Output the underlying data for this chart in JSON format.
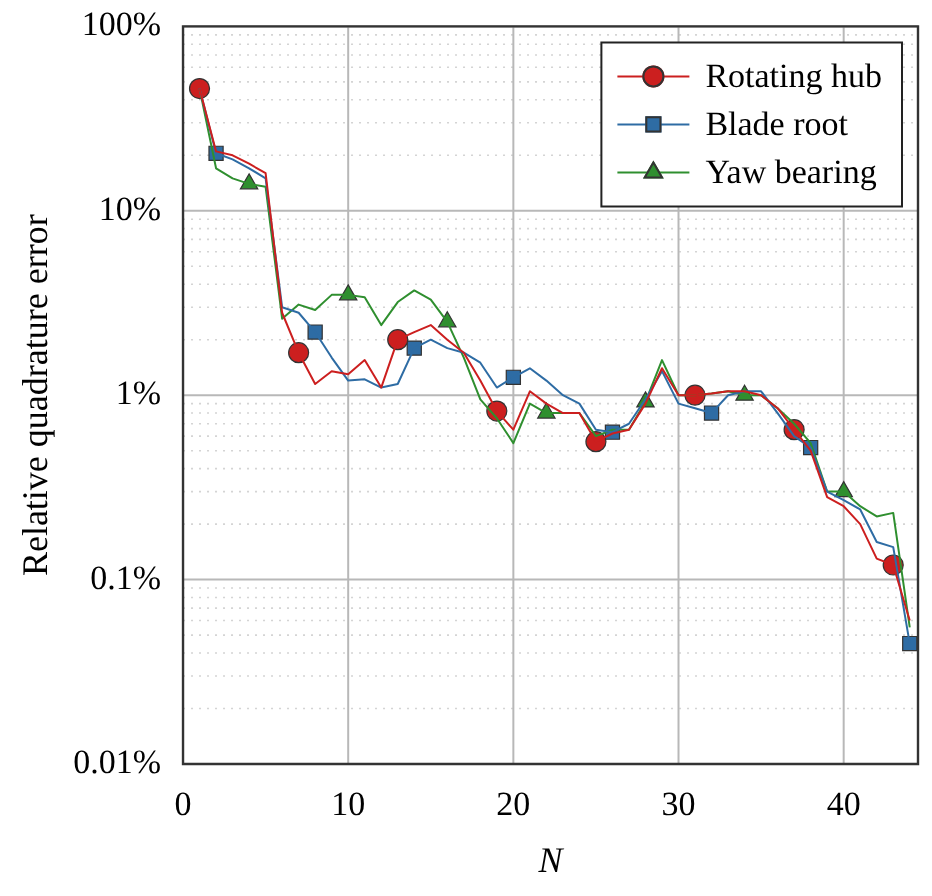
{
  "chart_data": {
    "type": "line",
    "xlabel": "N",
    "ylabel": "Relative quadrature error",
    "log": "y",
    "grid": true,
    "legend": "top right",
    "line_style": "solid",
    "x": [
      1,
      2,
      3,
      4,
      5,
      6,
      7,
      8,
      9,
      10,
      11,
      12,
      13,
      14,
      15,
      16,
      17,
      18,
      19,
      20,
      21,
      22,
      23,
      24,
      25,
      26,
      27,
      28,
      29,
      30,
      31,
      32,
      33,
      34,
      35,
      36,
      37,
      38,
      39,
      40,
      41,
      42,
      43,
      44
    ],
    "xlim": [
      0,
      44.5
    ],
    "xticks": [
      0,
      10,
      20,
      30,
      40
    ],
    "ylim": [
      0.01,
      100
    ],
    "yticks": [
      {
        "value": 0.01,
        "label": "0.01%"
      },
      {
        "value": 0.02,
        "label": null
      },
      {
        "value": 0.03,
        "label": null
      },
      {
        "value": 0.04,
        "label": null
      },
      {
        "value": 0.05,
        "label": null
      },
      {
        "value": 0.06,
        "label": null
      },
      {
        "value": 0.07,
        "label": null
      },
      {
        "value": 0.08,
        "label": null
      },
      {
        "value": 0.09,
        "label": null
      },
      {
        "value": 0.1,
        "label": "0.1%"
      },
      {
        "value": 0.2,
        "label": null
      },
      {
        "value": 0.3,
        "label": null
      },
      {
        "value": 0.4,
        "label": null
      },
      {
        "value": 0.5,
        "label": null
      },
      {
        "value": 0.6,
        "label": null
      },
      {
        "value": 0.7,
        "label": null
      },
      {
        "value": 0.8,
        "label": null
      },
      {
        "value": 0.9,
        "label": null
      },
      {
        "value": 1,
        "label": "1%"
      },
      {
        "value": 2,
        "label": null
      },
      {
        "value": 3,
        "label": null
      },
      {
        "value": 4,
        "label": null
      },
      {
        "value": 5,
        "label": null
      },
      {
        "value": 6,
        "label": null
      },
      {
        "value": 7,
        "label": null
      },
      {
        "value": 8,
        "label": null
      },
      {
        "value": 9,
        "label": null
      },
      {
        "value": 10,
        "label": "10%"
      },
      {
        "value": 20,
        "label": null
      },
      {
        "value": 30,
        "label": null
      },
      {
        "value": 40,
        "label": null
      },
      {
        "value": 50,
        "label": null
      },
      {
        "value": 60,
        "label": null
      },
      {
        "value": 70,
        "label": null
      },
      {
        "value": 80,
        "label": null
      },
      {
        "value": 90,
        "label": null
      },
      {
        "value": 100,
        "label": "100%"
      }
    ],
    "series": [
      {
        "name": "Rotating hub",
        "color": "#cc1f1f",
        "values": [
          46,
          21,
          20,
          18,
          16,
          2.8,
          1.7,
          1.15,
          1.35,
          1.3,
          1.55,
          1.1,
          2.0,
          2.2,
          2.4,
          2.0,
          1.7,
          1.2,
          0.82,
          0.65,
          1.05,
          0.9,
          0.8,
          0.8,
          0.56,
          0.62,
          0.65,
          0.9,
          1.4,
          1.0,
          1.0,
          1.02,
          1.05,
          1.05,
          1.0,
          0.85,
          0.65,
          0.5,
          0.28,
          0.25,
          0.2,
          0.13,
          0.12,
          0.06
        ]
      },
      {
        "name": "Blade root",
        "color": "#2e6ca4",
        "values": [
          46,
          20.5,
          19,
          17,
          15,
          3.0,
          2.8,
          2.2,
          1.6,
          1.2,
          1.22,
          1.1,
          1.15,
          1.8,
          2.0,
          1.8,
          1.7,
          1.5,
          1.1,
          1.25,
          1.4,
          1.2,
          1.0,
          0.9,
          0.65,
          0.63,
          0.7,
          0.95,
          1.35,
          0.9,
          0.85,
          0.8,
          1.0,
          1.05,
          1.05,
          0.8,
          0.6,
          0.52,
          0.3,
          0.27,
          0.24,
          0.16,
          0.15,
          0.045
        ]
      },
      {
        "name": "Yaw bearing",
        "color": "#2f8f2f",
        "values": [
          46,
          17,
          15,
          14,
          13.5,
          2.6,
          3.1,
          2.9,
          3.5,
          3.5,
          3.4,
          2.4,
          3.2,
          3.7,
          3.3,
          2.5,
          1.6,
          0.95,
          0.75,
          0.55,
          0.9,
          0.8,
          0.8,
          0.8,
          0.6,
          0.65,
          0.65,
          0.92,
          1.55,
          1.0,
          1.0,
          1.02,
          1.05,
          1.0,
          1.0,
          0.85,
          0.7,
          0.55,
          0.3,
          0.3,
          0.25,
          0.22,
          0.23,
          0.055
        ]
      },
      {
        "type": "scatter",
        "color": "#cc1f1f",
        "marker": "circle",
        "x": [
          1,
          7,
          13,
          19,
          25,
          31,
          37,
          43
        ],
        "values": [
          46,
          1.7,
          2.0,
          0.82,
          0.56,
          1.0,
          0.65,
          0.12
        ]
      },
      {
        "type": "scatter",
        "color": "#2e6ca4",
        "marker": "square",
        "x": [
          2,
          8,
          14,
          20,
          26,
          32,
          38,
          44
        ],
        "values": [
          20.5,
          2.2,
          1.8,
          1.25,
          0.63,
          0.8,
          0.52,
          0.045
        ]
      },
      {
        "type": "scatter",
        "color": "#2f8f2f",
        "marker": "triangle",
        "x": [
          4,
          10,
          16,
          22,
          28,
          34,
          40
        ],
        "values": [
          14,
          3.5,
          2.5,
          0.8,
          0.92,
          1.0,
          0.3
        ]
      }
    ]
  }
}
